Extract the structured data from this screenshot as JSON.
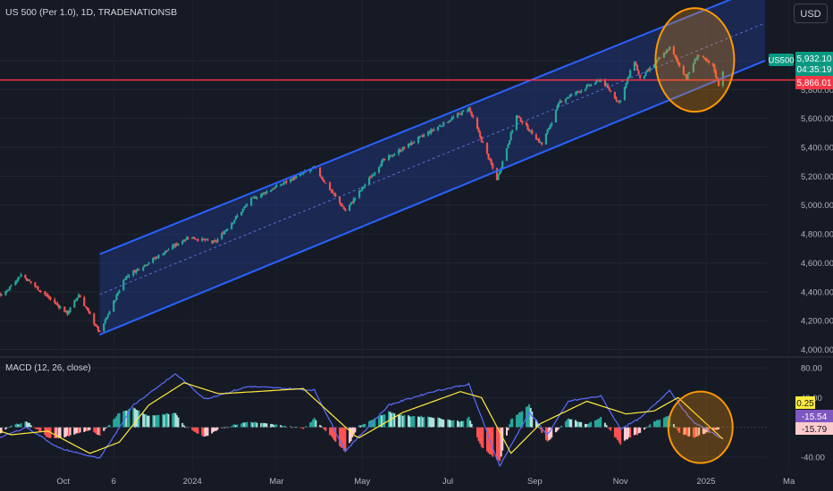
{
  "header": {
    "title": "US 500 (Per 1.0), 1D, TRADENATIONSB",
    "currency_button": "USD"
  },
  "price_tags": {
    "symbol": "US500",
    "last_price": "5,932.10",
    "countdown": "04:35:19",
    "line_price": "5,866.01"
  },
  "macd_panel": {
    "title": "MACD (12, 26, close)",
    "hist_label": "0.25",
    "macd_label": "-15.54",
    "signal_label": "-15.79"
  },
  "colors": {
    "background": "#161a25",
    "up_candle": "#26a69a",
    "down_candle": "#ef5350",
    "channel_line": "#2962ff",
    "channel_fill": "#1e3a8a",
    "horizontal_line": "#f23645",
    "highlight_circle": "#ff9800",
    "macd_line": "#5b6cff",
    "signal_line": "#ffeb3b"
  },
  "chart_data": [
    {
      "type": "candlestick",
      "name": "price",
      "yticks": [
        4000,
        4200,
        4400,
        4600,
        4800,
        5000,
        5200,
        5400,
        5600,
        5800,
        6000
      ],
      "ytick_labels": [
        "4,000.00",
        "4,200.00",
        "4,400.00",
        "4,600.00",
        "4,800.00",
        "5,000.00",
        "5,200.00",
        "5,400.00",
        "5,600.00",
        "5,800.00",
        "6,000.00"
      ],
      "ylim": [
        3960,
        6420
      ],
      "x_labels": [
        "Oct",
        "6",
        "2024",
        "Mar",
        "May",
        "Jul",
        "Sep",
        "Nov",
        "2025",
        "Ma"
      ],
      "horizontal_line": 5866.01,
      "channel": {
        "start": "2023-10-27",
        "end": "2025-02-12",
        "lower": [
          4103,
          6000
        ],
        "upper": [
          4660,
          6520
        ]
      },
      "close_anchors": [
        [
          "2023-07-24",
          4410
        ],
        [
          "2023-07-31",
          4550
        ],
        [
          "2023-08-18",
          4370
        ],
        [
          "2023-09-01",
          4520
        ],
        [
          "2023-10-04",
          4250
        ],
        [
          "2023-10-12",
          4380
        ],
        [
          "2023-10-27",
          4115
        ],
        [
          "2023-11-14",
          4500
        ],
        [
          "2023-12-29",
          4780
        ],
        [
          "2024-01-17",
          4740
        ],
        [
          "2024-02-12",
          5040
        ],
        [
          "2024-03-28",
          5260
        ],
        [
          "2024-04-19",
          4960
        ],
        [
          "2024-05-15",
          5300
        ],
        [
          "2024-06-10",
          5460
        ],
        [
          "2024-07-16",
          5670
        ],
        [
          "2024-08-05",
          5180
        ],
        [
          "2024-08-08",
          5270
        ],
        [
          "2024-08-19",
          5620
        ],
        [
          "2024-09-06",
          5420
        ],
        [
          "2024-09-19",
          5720
        ],
        [
          "2024-10-18",
          5870
        ],
        [
          "2024-10-31",
          5710
        ],
        [
          "2024-11-11",
          6000
        ],
        [
          "2024-11-15",
          5870
        ],
        [
          "2024-12-06",
          6090
        ],
        [
          "2024-12-18",
          5880
        ],
        [
          "2024-12-26",
          6040
        ],
        [
          "2025-01-06",
          5960
        ],
        [
          "2025-01-10",
          5832
        ],
        [
          "2025-01-13",
          5932.1
        ]
      ]
    },
    {
      "type": "macd",
      "name": "MACD (12, 26, close)",
      "yticks": [
        80,
        40,
        0,
        -40
      ],
      "ytick_labels": [
        "80.00",
        "40.00",
        "0",
        "-40.00"
      ],
      "ylim": [
        -58,
        92
      ],
      "macd_anchors": [
        [
          "2023-07-24",
          5
        ],
        [
          "2023-08-15",
          -15
        ],
        [
          "2023-09-05",
          0
        ],
        [
          "2023-09-28",
          -28
        ],
        [
          "2023-10-27",
          -42
        ],
        [
          "2023-11-20",
          30
        ],
        [
          "2023-12-20",
          72
        ],
        [
          "2024-01-10",
          38
        ],
        [
          "2024-02-10",
          55
        ],
        [
          "2024-03-28",
          50
        ],
        [
          "2024-04-19",
          -32
        ],
        [
          "2024-05-20",
          30
        ],
        [
          "2024-06-20",
          48
        ],
        [
          "2024-07-16",
          58
        ],
        [
          "2024-08-07",
          -52
        ],
        [
          "2024-08-28",
          20
        ],
        [
          "2024-09-10",
          -10
        ],
        [
          "2024-09-25",
          35
        ],
        [
          "2024-10-18",
          42
        ],
        [
          "2024-11-01",
          -2
        ],
        [
          "2024-11-15",
          12
        ],
        [
          "2024-12-06",
          50
        ],
        [
          "2024-12-22",
          8
        ],
        [
          "2025-01-13",
          -15.54
        ]
      ],
      "signal_anchors": [
        [
          "2023-07-24",
          10
        ],
        [
          "2023-08-25",
          -10
        ],
        [
          "2023-09-20",
          -5
        ],
        [
          "2023-10-20",
          -35
        ],
        [
          "2023-11-10",
          -20
        ],
        [
          "2023-12-01",
          30
        ],
        [
          "2023-12-26",
          60
        ],
        [
          "2024-01-20",
          45
        ],
        [
          "2024-02-15",
          48
        ],
        [
          "2024-03-20",
          52
        ],
        [
          "2024-04-28",
          -15
        ],
        [
          "2024-05-30",
          20
        ],
        [
          "2024-07-10",
          48
        ],
        [
          "2024-07-25",
          40
        ],
        [
          "2024-08-15",
          -35
        ],
        [
          "2024-09-05",
          5
        ],
        [
          "2024-10-08",
          35
        ],
        [
          "2024-11-05",
          18
        ],
        [
          "2024-11-25",
          22
        ],
        [
          "2024-12-12",
          40
        ],
        [
          "2025-01-13",
          -15.79
        ]
      ]
    }
  ]
}
